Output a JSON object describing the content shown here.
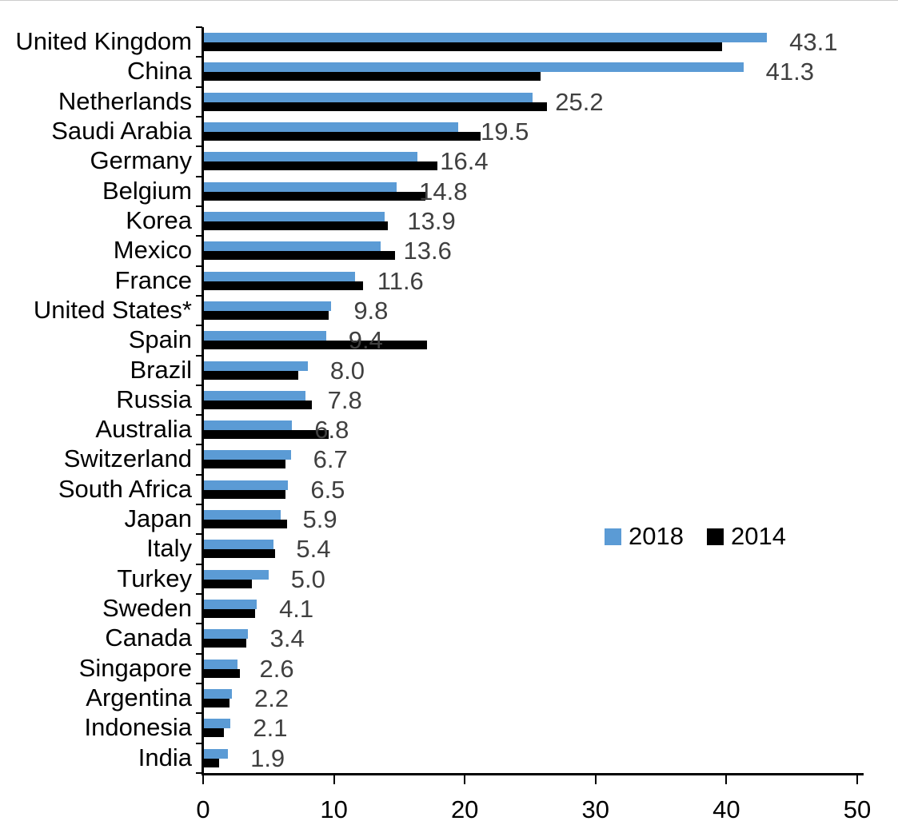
{
  "chart_data": {
    "type": "bar",
    "orientation": "horizontal",
    "title": "",
    "xlabel": "",
    "ylabel": "",
    "xlim": [
      0,
      50
    ],
    "x_ticks": [
      0,
      10,
      20,
      30,
      40,
      50
    ],
    "x_tick_labels": [
      "0",
      "10",
      "20",
      "30",
      "40",
      "50"
    ],
    "grid": false,
    "categories": [
      "United Kingdom",
      "China",
      "Netherlands",
      "Saudi Arabia",
      "Germany",
      "Belgium",
      "Korea",
      "Mexico",
      "France",
      "United States*",
      "Spain",
      "Brazil",
      "Russia",
      "Australia",
      "Switzerland",
      "South Africa",
      "Japan",
      "Italy",
      "Turkey",
      "Sweden",
      "Canada",
      "Singapore",
      "Argentina",
      "Indonesia",
      "India"
    ],
    "series": [
      {
        "name": "2018",
        "color": "#5B9BD5",
        "values": [
          43.1,
          41.3,
          25.2,
          19.5,
          16.4,
          14.8,
          13.9,
          13.6,
          11.6,
          9.8,
          9.4,
          8.0,
          7.8,
          6.8,
          6.7,
          6.5,
          5.9,
          5.4,
          5.0,
          4.1,
          3.4,
          2.6,
          2.2,
          2.1,
          1.9
        ]
      },
      {
        "name": "2014",
        "color": "#000000",
        "values": [
          39.7,
          25.8,
          26.3,
          21.2,
          17.9,
          17.0,
          14.1,
          14.7,
          12.2,
          9.6,
          17.1,
          7.3,
          8.3,
          9.6,
          6.3,
          6.3,
          6.4,
          5.5,
          3.7,
          4.0,
          3.3,
          2.8,
          2.0,
          1.6,
          1.2
        ]
      }
    ],
    "data_labels": {
      "series": "2018",
      "color": "#404040",
      "values": [
        "43.1",
        "41.3",
        "25.2",
        "19.5",
        "16.4",
        "14.8",
        "13.9",
        "13.6",
        "11.6",
        "9.8",
        "9.4",
        "8.0",
        "7.8",
        "6.8",
        "6.7",
        "6.5",
        "5.9",
        "5.4",
        "5.0",
        "4.1",
        "3.4",
        "2.6",
        "2.2",
        "2.1",
        "1.9"
      ]
    },
    "legend": {
      "position": "middle-right",
      "items": [
        {
          "label": "2018",
          "color": "#5B9BD5"
        },
        {
          "label": "2014",
          "color": "#000000"
        }
      ]
    }
  }
}
